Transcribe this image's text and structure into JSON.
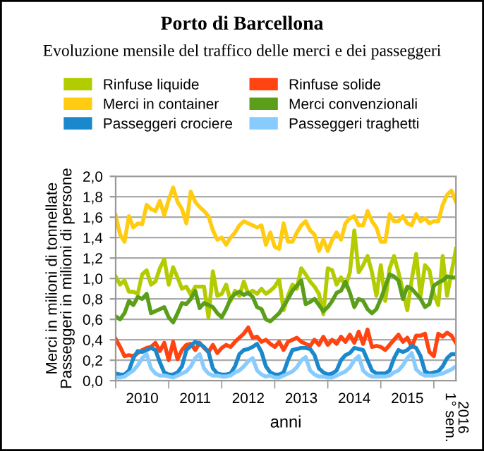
{
  "chart_data": {
    "type": "line",
    "title": "Porto di Barcellona",
    "subtitle": "Evoluzione mensile del traffico delle merci e dei passeggeri",
    "xlabel": "anni",
    "ylabel": "Merci in milioni di tonnellate\nPasseggeri in milioni di persone",
    "categories": [
      null,
      null,
      null,
      null,
      null,
      null,
      "2010",
      null,
      null,
      null,
      null,
      null,
      null,
      null,
      null,
      null,
      null,
      null,
      "2011",
      null,
      null,
      null,
      null,
      null,
      null,
      null,
      null,
      null,
      null,
      null,
      "2012",
      null,
      null,
      null,
      null,
      null,
      null,
      null,
      null,
      null,
      null,
      null,
      "2013",
      null,
      null,
      null,
      null,
      null,
      null,
      null,
      null,
      null,
      null,
      null,
      "2014",
      null,
      null,
      null,
      null,
      null,
      null,
      null,
      null,
      null,
      null,
      null,
      "2015",
      null,
      null,
      null,
      null,
      null,
      null,
      null,
      null,
      null,
      null,
      "2016\n1° sem."
    ],
    "ylim": [
      0,
      2
    ],
    "yticks": [
      {
        "value": 0,
        "label": "0,0"
      },
      {
        "value": 0.2,
        "label": "0,2"
      },
      {
        "value": 0.4,
        "label": "0,4"
      },
      {
        "value": 0.6,
        "label": "0,6"
      },
      {
        "value": 0.8,
        "label": "0,8"
      },
      {
        "value": 1.0,
        "label": "1,0"
      },
      {
        "value": 1.2,
        "label": "1,2"
      },
      {
        "value": 1.4,
        "label": "1,4"
      },
      {
        "value": 1.6,
        "label": "1,6"
      },
      {
        "value": 1.8,
        "label": "1,8"
      },
      {
        "value": 2.0,
        "label": "2,0"
      }
    ],
    "grid": "y",
    "legend": "top",
    "marker": "none",
    "line_style": "solid",
    "series": [
      {
        "name": "Rinfuse liquide",
        "color": "#b3cc00",
        "values": [
          1.02,
          0.94,
          0.98,
          0.87,
          0.87,
          0.85,
          1.04,
          1.08,
          0.94,
          0.97,
          1.1,
          1.19,
          0.94,
          1.11,
          1.01,
          0.9,
          0.92,
          0.84,
          0.92,
          0.92,
          0.92,
          0.62,
          1.07,
          0.83,
          0.85,
          0.94,
          0.78,
          0.88,
          0.83,
          0.97,
          0.85,
          0.88,
          0.85,
          0.9,
          0.85,
          0.88,
          0.92,
          0.99,
          0.69,
          0.83,
          0.94,
          0.9,
          1.1,
          1.04,
          0.97,
          0.92,
          0.85,
          0.65,
          1.1,
          1.08,
          0.94,
          1.01,
          0.92,
          1.06,
          1.47,
          1.06,
          1.13,
          1.22,
          1.06,
          0.83,
          1.13,
          0.78,
          1.1,
          1.22,
          1.06,
          0.88,
          0.69,
          0.99,
          1.24,
          0.83,
          1.13,
          1.08,
          0.85,
          0.74,
          1.22,
          0.83,
          1.06,
          1.29
        ]
      },
      {
        "name": "Rinfuse solide",
        "color": "#ff4411",
        "values": [
          0.41,
          0.33,
          0.24,
          0.25,
          0.24,
          0.27,
          0.3,
          0.32,
          0.33,
          0.37,
          0.29,
          0.37,
          0.2,
          0.38,
          0.21,
          0.3,
          0.35,
          0.36,
          0.3,
          0.37,
          0.32,
          0.28,
          0.35,
          0.27,
          0.32,
          0.35,
          0.33,
          0.38,
          0.42,
          0.46,
          0.52,
          0.42,
          0.43,
          0.38,
          0.4,
          0.36,
          0.33,
          0.38,
          0.3,
          0.38,
          0.4,
          0.42,
          0.38,
          0.36,
          0.34,
          0.4,
          0.35,
          0.43,
          0.35,
          0.4,
          0.36,
          0.43,
          0.38,
          0.45,
          0.37,
          0.48,
          0.36,
          0.5,
          0.33,
          0.34,
          0.33,
          0.3,
          0.35,
          0.4,
          0.45,
          0.38,
          0.42,
          0.33,
          0.44,
          0.44,
          0.46,
          0.28,
          0.24,
          0.46,
          0.43,
          0.47,
          0.44,
          0.37
        ]
      },
      {
        "name": "Merci in container",
        "color": "#ffcc11",
        "values": [
          1.62,
          1.43,
          1.36,
          1.61,
          1.5,
          1.54,
          1.53,
          1.72,
          1.68,
          1.66,
          1.76,
          1.62,
          1.77,
          1.89,
          1.75,
          1.68,
          1.54,
          1.85,
          1.75,
          1.7,
          1.66,
          1.61,
          1.47,
          1.38,
          1.4,
          1.33,
          1.4,
          1.45,
          1.52,
          1.56,
          1.54,
          1.52,
          1.5,
          1.52,
          1.33,
          1.45,
          1.31,
          1.29,
          1.54,
          1.36,
          1.36,
          1.45,
          1.52,
          1.56,
          1.47,
          1.43,
          1.27,
          1.38,
          1.27,
          1.38,
          1.45,
          1.38,
          1.54,
          1.59,
          1.61,
          1.52,
          1.52,
          1.66,
          1.56,
          1.5,
          1.36,
          1.36,
          1.63,
          1.56,
          1.56,
          1.61,
          1.54,
          1.52,
          1.63,
          1.56,
          1.59,
          1.54,
          1.56,
          1.56,
          1.72,
          1.82,
          1.86,
          1.75
        ]
      },
      {
        "name": "Merci convenzionali",
        "color": "#5a9e1a",
        "values": [
          0.63,
          0.6,
          0.66,
          0.78,
          0.74,
          0.82,
          0.8,
          0.85,
          0.66,
          0.68,
          0.7,
          0.72,
          0.62,
          0.57,
          0.66,
          0.76,
          0.75,
          0.8,
          0.88,
          0.71,
          0.76,
          0.74,
          0.72,
          0.66,
          0.62,
          0.7,
          0.8,
          0.85,
          0.87,
          0.84,
          0.86,
          0.82,
          0.72,
          0.7,
          0.6,
          0.58,
          0.62,
          0.66,
          0.73,
          0.8,
          0.88,
          0.93,
          0.98,
          0.75,
          0.77,
          0.8,
          0.74,
          0.68,
          0.72,
          0.78,
          0.86,
          0.88,
          0.97,
          0.86,
          0.72,
          0.8,
          0.78,
          0.7,
          0.66,
          0.7,
          0.8,
          0.92,
          1.04,
          1.02,
          0.98,
          0.8,
          0.92,
          0.9,
          0.85,
          0.8,
          0.72,
          0.75,
          0.93,
          0.96,
          0.98,
          1.02,
          1.01,
          1.01
        ]
      },
      {
        "name": "Passeggeri crociere",
        "color": "#1a88cc",
        "values": [
          0.07,
          0.06,
          0.06,
          0.1,
          0.22,
          0.29,
          0.28,
          0.3,
          0.32,
          0.3,
          0.18,
          0.08,
          0.06,
          0.06,
          0.08,
          0.14,
          0.3,
          0.34,
          0.38,
          0.36,
          0.33,
          0.28,
          0.12,
          0.07,
          0.06,
          0.06,
          0.07,
          0.14,
          0.26,
          0.3,
          0.31,
          0.33,
          0.36,
          0.28,
          0.14,
          0.08,
          0.06,
          0.06,
          0.08,
          0.2,
          0.3,
          0.31,
          0.32,
          0.32,
          0.31,
          0.25,
          0.12,
          0.08,
          0.06,
          0.07,
          0.1,
          0.2,
          0.25,
          0.27,
          0.32,
          0.31,
          0.3,
          0.2,
          0.1,
          0.07,
          0.07,
          0.07,
          0.1,
          0.22,
          0.3,
          0.28,
          0.3,
          0.34,
          0.32,
          0.24,
          0.09,
          0.07,
          0.08,
          0.09,
          0.14,
          0.22,
          0.26,
          0.26
        ]
      },
      {
        "name": "Passeggeri traghetti",
        "color": "#88ccff",
        "values": [
          0.03,
          0.03,
          0.04,
          0.07,
          0.1,
          0.15,
          0.22,
          0.26,
          0.12,
          0.07,
          0.05,
          0.05,
          0.04,
          0.03,
          0.05,
          0.07,
          0.09,
          0.14,
          0.22,
          0.26,
          0.12,
          0.07,
          0.05,
          0.05,
          0.04,
          0.04,
          0.05,
          0.08,
          0.1,
          0.14,
          0.19,
          0.22,
          0.1,
          0.06,
          0.04,
          0.05,
          0.03,
          0.03,
          0.05,
          0.07,
          0.09,
          0.13,
          0.2,
          0.23,
          0.1,
          0.06,
          0.04,
          0.04,
          0.03,
          0.03,
          0.05,
          0.07,
          0.09,
          0.13,
          0.2,
          0.24,
          0.1,
          0.06,
          0.04,
          0.04,
          0.04,
          0.04,
          0.05,
          0.08,
          0.1,
          0.15,
          0.22,
          0.27,
          0.11,
          0.07,
          0.05,
          0.05,
          0.05,
          0.06,
          0.07,
          0.09,
          0.11,
          0.14
        ]
      }
    ]
  }
}
